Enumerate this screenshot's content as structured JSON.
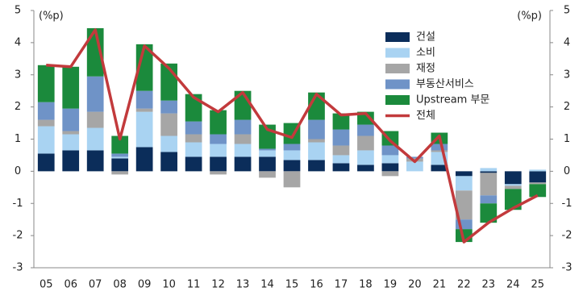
{
  "chart_data": {
    "type": "bar",
    "y_unit": "(%p)",
    "y2_unit": "(%p)",
    "categories": [
      "05",
      "06",
      "07",
      "08",
      "09",
      "10",
      "11",
      "12",
      "13",
      "14",
      "15",
      "16",
      "17",
      "18",
      "19",
      "20",
      "21",
      "22",
      "23",
      "24",
      "25"
    ],
    "series": [
      {
        "name": "건설",
        "color": "#0b2d5a",
        "values": [
          0.55,
          0.65,
          0.65,
          0.4,
          0.75,
          0.6,
          0.45,
          0.45,
          0.45,
          0.45,
          0.35,
          0.35,
          0.25,
          0.2,
          0.25,
          0.0,
          0.2,
          -0.15,
          -0.05,
          -0.4,
          -0.35
        ]
      },
      {
        "name": "소비",
        "color": "#a9d3f2",
        "values": [
          0.85,
          0.5,
          0.7,
          0.05,
          1.1,
          0.5,
          0.45,
          0.4,
          0.4,
          0.2,
          0.3,
          0.55,
          0.25,
          0.45,
          0.25,
          0.3,
          0.4,
          -0.45,
          0.1,
          -0.05,
          0.05
        ]
      },
      {
        "name": "재정",
        "color": "#a6a6a6",
        "values": [
          0.2,
          0.1,
          0.5,
          -0.1,
          0.1,
          0.7,
          0.25,
          -0.1,
          0.3,
          -0.2,
          -0.5,
          0.1,
          0.3,
          0.45,
          -0.15,
          0.1,
          0.05,
          -0.9,
          -0.7,
          -0.1,
          -0.05
        ]
      },
      {
        "name": "부동산서비스",
        "color": "#6f93c7",
        "values": [
          0.55,
          0.7,
          1.1,
          0.1,
          0.55,
          0.4,
          0.4,
          0.3,
          0.45,
          0.05,
          0.2,
          0.6,
          0.5,
          0.35,
          0.3,
          0.05,
          0.2,
          -0.3,
          -0.25,
          0.0,
          0.0
        ]
      },
      {
        "name": "Upstream 부문",
        "color": "#1b8a3c",
        "values": [
          1.15,
          1.3,
          1.5,
          0.55,
          1.45,
          1.15,
          0.85,
          0.75,
          0.9,
          0.75,
          0.65,
          0.85,
          0.5,
          0.4,
          0.45,
          0.0,
          0.35,
          -0.4,
          -0.6,
          -0.65,
          -0.4
        ]
      },
      {
        "name": "전체",
        "color": "#c23a3c",
        "type": "line",
        "values": [
          3.3,
          3.25,
          4.4,
          1.0,
          3.9,
          3.2,
          2.3,
          1.85,
          2.45,
          1.3,
          1.05,
          2.4,
          1.75,
          1.8,
          0.95,
          0.3,
          1.1,
          -2.2,
          -1.6,
          -1.15,
          -0.75
        ]
      }
    ],
    "ylim": [
      -3,
      5
    ],
    "yticks": [
      -3,
      -2,
      -1,
      0,
      1,
      2,
      3,
      4,
      5
    ],
    "y2lim": [
      -3,
      5
    ],
    "y2ticks": [
      -3,
      -2,
      -1,
      0,
      1,
      2,
      3,
      4,
      5
    ]
  }
}
